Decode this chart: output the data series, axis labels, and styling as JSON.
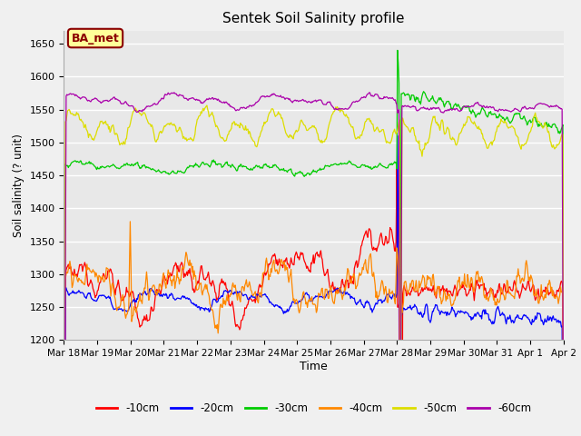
{
  "title": "Sentek Soil Salinity profile",
  "xlabel": "Time",
  "ylabel": "Soil salinity (? unit)",
  "ylim": [
    1200,
    1670
  ],
  "yticks": [
    1200,
    1250,
    1300,
    1350,
    1400,
    1450,
    1500,
    1550,
    1600,
    1650
  ],
  "fig_bg": "#f0f0f0",
  "plot_bg": "#e8e8e8",
  "annotation_label": "BA_met",
  "annotation_box_color": "#ffff99",
  "annotation_box_edge": "#8b0000",
  "annotation_text_color": "#8b0000",
  "colors": {
    "-10cm": "#ff0000",
    "-20cm": "#0000ff",
    "-30cm": "#00cc00",
    "-40cm": "#ff8800",
    "-50cm": "#dddd00",
    "-60cm": "#aa00aa"
  },
  "legend_labels": [
    "-10cm",
    "-20cm",
    "-30cm",
    "-40cm",
    "-50cm",
    "-60cm"
  ],
  "n_points": 672,
  "x_tick_labels": [
    "Mar 18",
    "Mar 19",
    "Mar 20",
    "Mar 21",
    "Mar 22",
    "Mar 23",
    "Mar 24",
    "Mar 25",
    "Mar 26",
    "Mar 27",
    "Mar 28",
    "Mar 29",
    "Mar 30",
    "Mar 31",
    "Apr 1",
    "Apr 2"
  ],
  "spike_index": 448
}
